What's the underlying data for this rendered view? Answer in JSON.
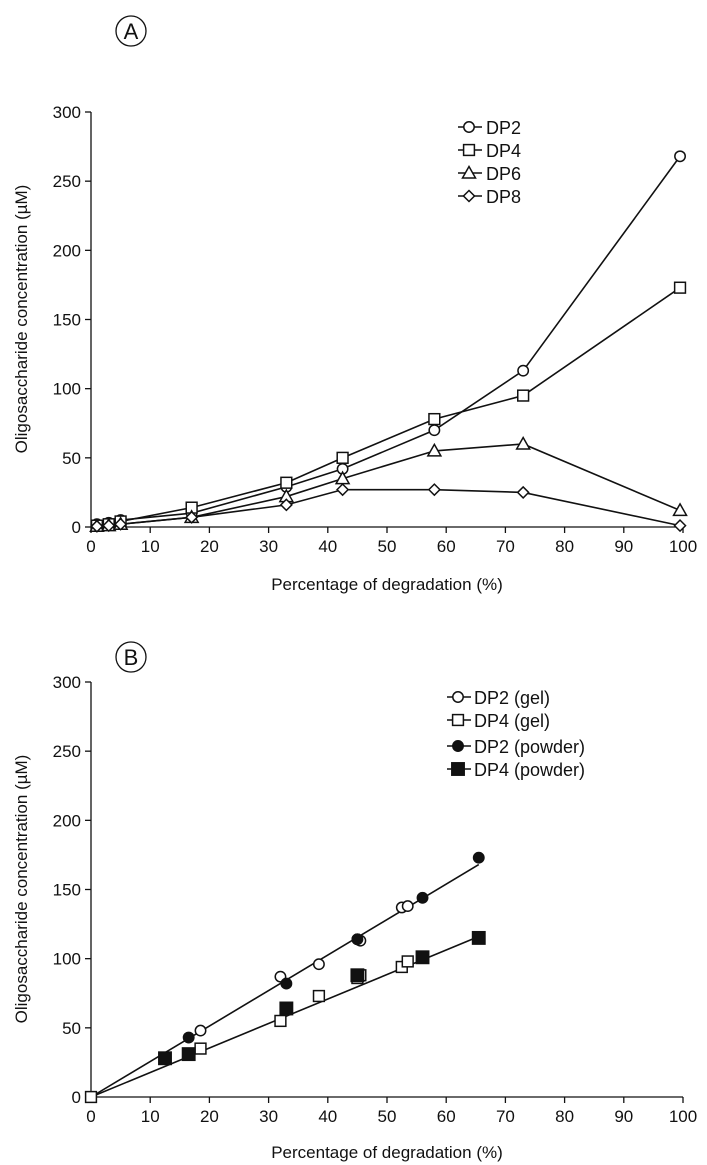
{
  "chart_data": [
    {
      "type": "line",
      "panel_label": "A",
      "xlabel": "Percentage of degradation (%)",
      "ylabel": "Oligosaccharide concentration (µM)",
      "xlim": [
        0,
        100
      ],
      "ylim": [
        0,
        300
      ],
      "xticks": [
        "0",
        "10",
        "20",
        "30",
        "40",
        "50",
        "60",
        "70",
        "80",
        "90",
        "100"
      ],
      "yticks": [
        "0",
        "50",
        "100",
        "150",
        "200",
        "250",
        "300"
      ],
      "grid": false,
      "legend_position": "top-right",
      "series": [
        {
          "name": "DP2",
          "marker": "circle-open",
          "connected": true,
          "x": [
            1,
            3,
            5,
            17,
            33,
            42.5,
            58,
            73,
            99.5
          ],
          "y": [
            2,
            3,
            5,
            10,
            29,
            42,
            70,
            113,
            268
          ]
        },
        {
          "name": "DP4",
          "marker": "square-open",
          "connected": true,
          "x": [
            1,
            3,
            5,
            17,
            33,
            42.5,
            58,
            73,
            99.5
          ],
          "y": [
            1,
            2,
            4,
            14,
            32,
            50,
            78,
            95,
            173
          ]
        },
        {
          "name": "DP6",
          "marker": "triangle-open",
          "connected": true,
          "x": [
            1,
            3,
            5,
            17,
            33,
            42.5,
            58,
            73,
            99.5
          ],
          "y": [
            0.5,
            1,
            2,
            7,
            22,
            35,
            55,
            60,
            12
          ]
        },
        {
          "name": "DP8",
          "marker": "diamond-open",
          "connected": true,
          "x": [
            1,
            3,
            5,
            17,
            33,
            42.5,
            58,
            73,
            99.5
          ],
          "y": [
            0.5,
            1,
            2,
            7,
            16,
            27,
            27,
            25,
            1
          ]
        }
      ]
    },
    {
      "type": "scatter",
      "panel_label": "B",
      "xlabel": "Percentage of degradation (%)",
      "ylabel": "Oligosaccharide concentration (µM)",
      "xlim": [
        0,
        100
      ],
      "ylim": [
        0,
        300
      ],
      "xticks": [
        "0",
        "10",
        "20",
        "30",
        "40",
        "50",
        "60",
        "70",
        "80",
        "90",
        "100"
      ],
      "yticks": [
        "0",
        "50",
        "100",
        "150",
        "200",
        "250",
        "300"
      ],
      "grid": false,
      "legend_position": "top-right",
      "series": [
        {
          "name": "DP2 (gel)",
          "marker": "circle-open",
          "x": [
            0,
            18.5,
            32,
            38.5,
            45,
            45.5,
            52.5,
            53.5
          ],
          "y": [
            0,
            48,
            87,
            96,
            114,
            113,
            137,
            138
          ]
        },
        {
          "name": "DP4 (gel)",
          "marker": "square-open",
          "x": [
            0,
            18.5,
            32,
            38.5,
            45,
            45.5,
            52.5,
            53.5
          ],
          "y": [
            0,
            35,
            55,
            73,
            86,
            88,
            94,
            98
          ]
        },
        {
          "name": "DP2 (powder)",
          "marker": "circle-filled",
          "x": [
            16.5,
            33,
            45,
            56,
            65.5
          ],
          "y": [
            43,
            82,
            114,
            144,
            173
          ]
        },
        {
          "name": "DP4 (powder)",
          "marker": "square-filled",
          "x": [
            12.5,
            16.5,
            33,
            45,
            56,
            65.5
          ],
          "y": [
            28,
            31,
            64,
            88,
            101,
            115
          ]
        }
      ],
      "fit_lines": [
        {
          "x": [
            0,
            65.5
          ],
          "y": [
            0,
            168
          ]
        },
        {
          "x": [
            0,
            65.5
          ],
          "y": [
            0,
            116
          ]
        }
      ]
    }
  ]
}
